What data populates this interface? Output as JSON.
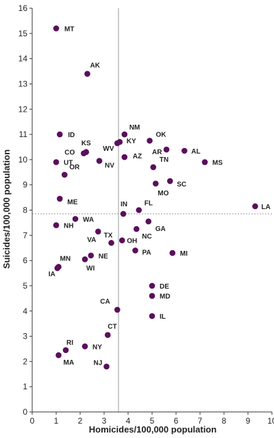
{
  "chart_data": {
    "type": "scatter",
    "title": "",
    "xlabel": "Homicides/100,000 population",
    "ylabel": "Suicides/100,000 population",
    "xlim": [
      0,
      10
    ],
    "ylim": [
      0,
      16
    ],
    "xticks": [
      0,
      1,
      2,
      3,
      4,
      5,
      6,
      7,
      8,
      9,
      10
    ],
    "yticks": [
      0,
      1,
      2,
      3,
      4,
      5,
      6,
      7,
      8,
      9,
      10,
      11,
      12,
      13,
      14,
      15,
      16
    ],
    "grid": false,
    "reference_lines": {
      "x": 3.6,
      "y": 7.85
    },
    "colors": {
      "point": "#5a0f5c",
      "axis": "#333333",
      "reference": "#999999"
    },
    "points": [
      {
        "label": "MT",
        "x": 1.0,
        "y": 15.2
      },
      {
        "label": "AK",
        "x": 2.3,
        "y": 13.4
      },
      {
        "label": "ID",
        "x": 1.15,
        "y": 11.0
      },
      {
        "label": "NM",
        "x": 3.85,
        "y": 11.0
      },
      {
        "label": "OK",
        "x": 4.9,
        "y": 10.75
      },
      {
        "label": "KY",
        "x": 3.65,
        "y": 10.7
      },
      {
        "label": "WV",
        "x": 3.55,
        "y": 10.65
      },
      {
        "label": "AR",
        "x": 5.6,
        "y": 10.4
      },
      {
        "label": "AL",
        "x": 6.35,
        "y": 10.35
      },
      {
        "label": "KS",
        "x": 2.25,
        "y": 10.3
      },
      {
        "label": "CO",
        "x": 2.15,
        "y": 10.25
      },
      {
        "label": "AZ",
        "x": 3.85,
        "y": 10.1
      },
      {
        "label": "UT",
        "x": 1.0,
        "y": 9.9
      },
      {
        "label": "NV",
        "x": 2.8,
        "y": 9.95
      },
      {
        "label": "MS",
        "x": 7.2,
        "y": 9.9
      },
      {
        "label": "TN",
        "x": 5.05,
        "y": 9.7
      },
      {
        "label": "OR",
        "x": 1.35,
        "y": 9.4
      },
      {
        "label": "SC",
        "x": 5.75,
        "y": 9.15
      },
      {
        "label": "MO",
        "x": 5.15,
        "y": 9.05
      },
      {
        "label": "ME",
        "x": 1.15,
        "y": 8.45
      },
      {
        "label": "LA",
        "x": 9.3,
        "y": 8.15
      },
      {
        "label": "FL",
        "x": 4.45,
        "y": 8.0
      },
      {
        "label": "IN",
        "x": 3.8,
        "y": 7.85
      },
      {
        "label": "WA",
        "x": 1.8,
        "y": 7.65
      },
      {
        "label": "GA",
        "x": 4.85,
        "y": 7.55
      },
      {
        "label": "NH",
        "x": 1.0,
        "y": 7.4
      },
      {
        "label": "NC",
        "x": 4.35,
        "y": 7.25
      },
      {
        "label": "VA",
        "x": 2.75,
        "y": 7.15
      },
      {
        "label": "OH",
        "x": 3.75,
        "y": 6.8
      },
      {
        "label": "TX",
        "x": 3.3,
        "y": 6.7
      },
      {
        "label": "PA",
        "x": 4.3,
        "y": 6.4
      },
      {
        "label": "MI",
        "x": 5.85,
        "y": 6.3
      },
      {
        "label": "NE",
        "x": 2.45,
        "y": 6.2
      },
      {
        "label": "WI",
        "x": 2.2,
        "y": 6.05
      },
      {
        "label": "MN",
        "x": 1.1,
        "y": 5.75
      },
      {
        "label": "IA",
        "x": 1.05,
        "y": 5.7
      },
      {
        "label": "DE",
        "x": 5.0,
        "y": 5.0
      },
      {
        "label": "MD",
        "x": 5.0,
        "y": 4.6
      },
      {
        "label": "CA",
        "x": 3.55,
        "y": 4.05
      },
      {
        "label": "IL",
        "x": 5.0,
        "y": 3.8
      },
      {
        "label": "CT",
        "x": 3.15,
        "y": 3.05
      },
      {
        "label": "NY",
        "x": 2.2,
        "y": 2.6
      },
      {
        "label": "RI",
        "x": 1.4,
        "y": 2.45
      },
      {
        "label": "MA",
        "x": 1.1,
        "y": 2.25
      },
      {
        "label": "NJ",
        "x": 3.1,
        "y": 1.8
      }
    ]
  }
}
